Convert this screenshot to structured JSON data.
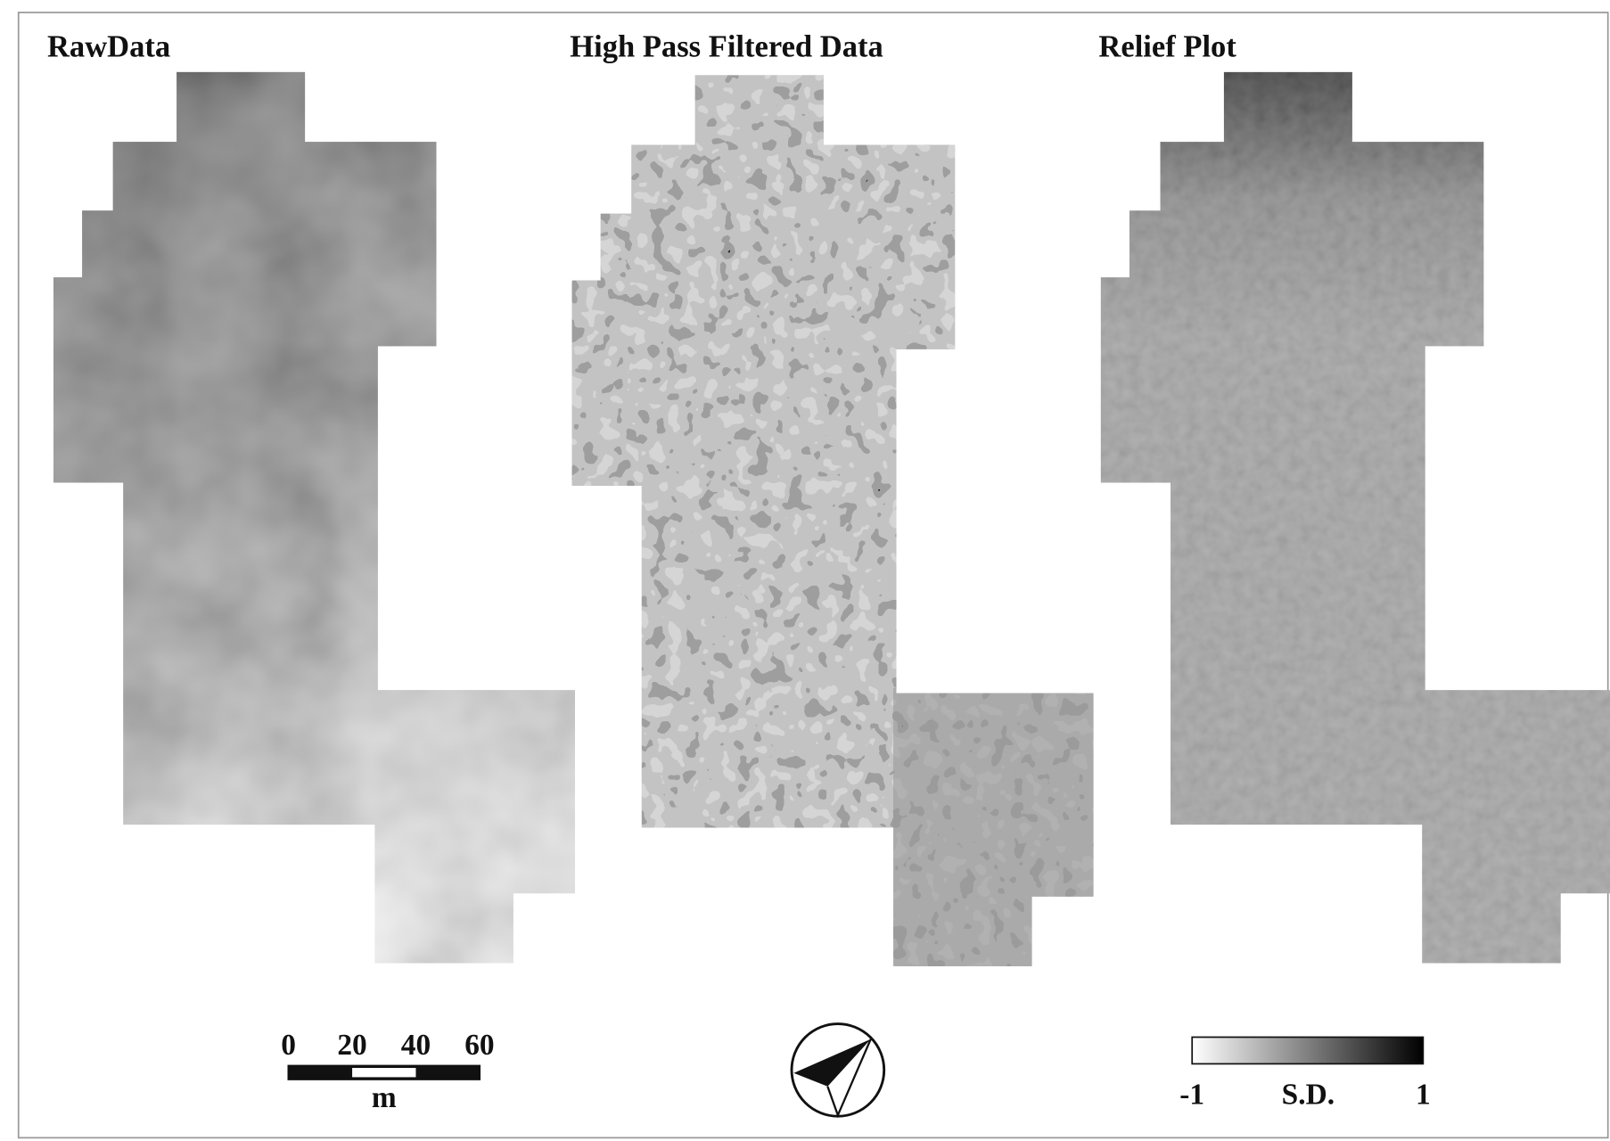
{
  "panels": [
    {
      "title": "RawData"
    },
    {
      "title": "High Pass Filtered Data"
    },
    {
      "title": "Relief Plot"
    }
  ],
  "scale_bar": {
    "ticks": [
      "0",
      "20",
      "40",
      "60"
    ],
    "unit": "m"
  },
  "legend": {
    "min": "-1",
    "label": "S.D.",
    "max": "1"
  }
}
